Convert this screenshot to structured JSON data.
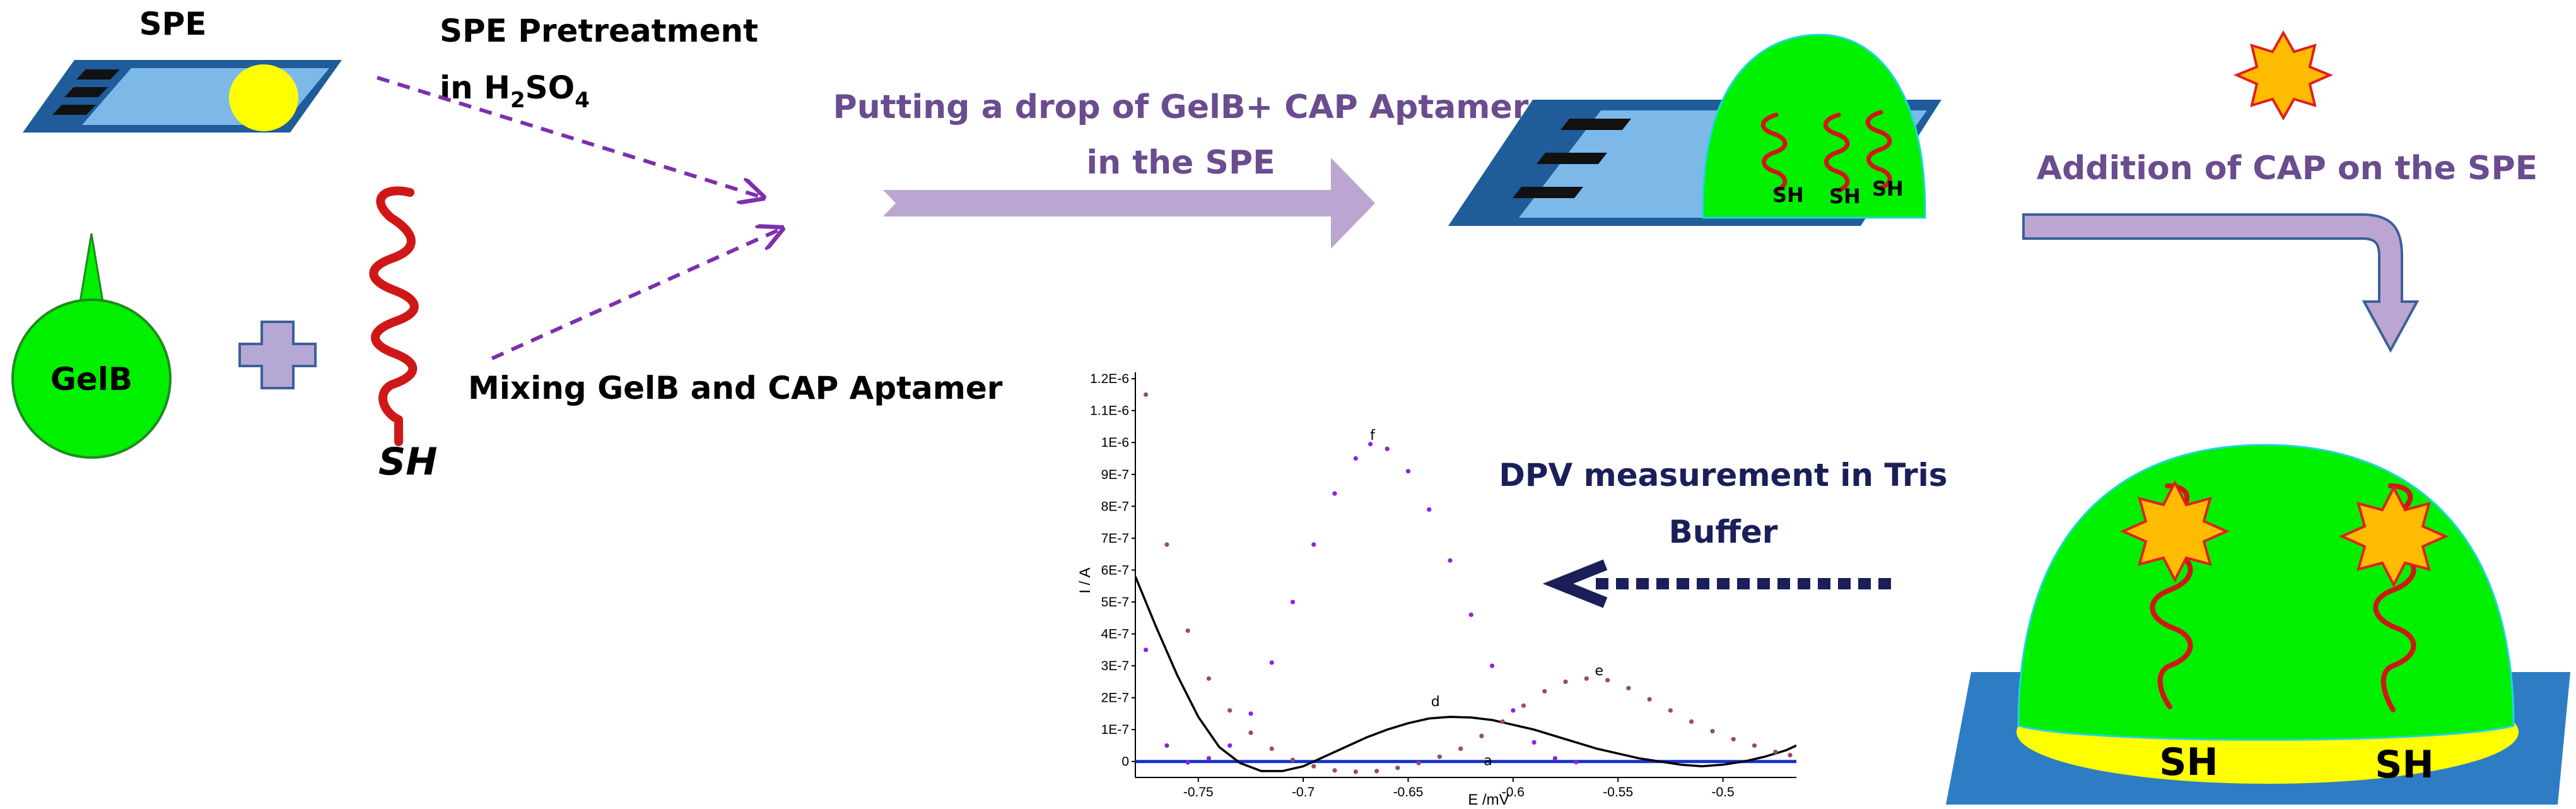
{
  "labels": {
    "spe": "SPE",
    "pretreat_line1": "SPE Pretreatment",
    "pretreat_line2": {
      "pre": "in H",
      "sub1": "2",
      "mid": "SO",
      "sub2": "4"
    },
    "gelb": "GelB",
    "sh": "SH",
    "mixing": "Mixing GelB and CAP Aptamer",
    "drop_line1": "Putting a drop of GelB+ CAP Aptamer",
    "drop_line2": "in the SPE",
    "addition": "Addition of CAP on the SPE",
    "dpv_line1": "DPV measurement in Tris",
    "dpv_line2": "Buffer"
  },
  "colors": {
    "electrode_fill": "#7db9e8",
    "electrode_border": "#1f5c99",
    "substrate": "#2e7dc4",
    "gel": "#00f000",
    "gel_border": "#22d5e0",
    "aptamer": "#d01717",
    "yellow": "#ffff00",
    "star": "#ffbb00",
    "star_border": "#e02020",
    "dashed_arrow": "#7d2fb0",
    "big_arrow": "#bba6d1",
    "text_purple": "#6a4c8f",
    "dpv_arrow": "#1a1f5a",
    "cross_fill": "#b6a8d4",
    "cross_border": "#3d5f9a"
  },
  "chart_data": {
    "type": "scatter",
    "xlabel": "E /mV",
    "ylabel": "I / A",
    "xlim": [
      -0.78,
      -0.465
    ],
    "ylim": [
      -5e-08,
      1.22e-06
    ],
    "x_ticks": [
      {
        "v": -0.75,
        "label": "-0.75"
      },
      {
        "v": -0.7,
        "label": "-0.7"
      },
      {
        "v": -0.65,
        "label": "-0.65"
      },
      {
        "v": -0.6,
        "label": "-0.6"
      },
      {
        "v": -0.55,
        "label": "-0.55"
      },
      {
        "v": -0.5,
        "label": "-0.5"
      }
    ],
    "y_ticks": [
      {
        "v": 0,
        "label": "0"
      },
      {
        "v": 1e-07,
        "label": "1E-7"
      },
      {
        "v": 2e-07,
        "label": "2E-7"
      },
      {
        "v": 3e-07,
        "label": "3E-7"
      },
      {
        "v": 4e-07,
        "label": "4E-7"
      },
      {
        "v": 5e-07,
        "label": "5E-7"
      },
      {
        "v": 6e-07,
        "label": "6E-7"
      },
      {
        "v": 7e-07,
        "label": "7E-7"
      },
      {
        "v": 8e-07,
        "label": "8E-7"
      },
      {
        "v": 9e-07,
        "label": "9E-7"
      },
      {
        "v": 1e-06,
        "label": "1E-6"
      },
      {
        "v": 1.1e-06,
        "label": "1.1E-6"
      },
      {
        "v": 1.2e-06,
        "label": "1.2E-6"
      }
    ],
    "series": [
      {
        "name": "a",
        "style": "line",
        "color": "#1630c8",
        "x": [
          -0.78,
          -0.74,
          -0.7,
          -0.66,
          -0.62,
          -0.58,
          -0.54,
          -0.5,
          -0.465
        ],
        "y": [
          0,
          0,
          0,
          0,
          0,
          0,
          0,
          0,
          0
        ],
        "label_at": [
          -0.612,
          0
        ]
      },
      {
        "name": "d",
        "style": "line",
        "color": "#000000",
        "x": [
          -0.78,
          -0.77,
          -0.76,
          -0.75,
          -0.74,
          -0.73,
          -0.72,
          -0.71,
          -0.7,
          -0.69,
          -0.68,
          -0.67,
          -0.66,
          -0.65,
          -0.64,
          -0.63,
          -0.62,
          -0.61,
          -0.6,
          -0.59,
          -0.58,
          -0.57,
          -0.56,
          -0.55,
          -0.54,
          -0.53,
          -0.52,
          -0.51,
          -0.5,
          -0.49,
          -0.48,
          -0.47,
          -0.465
        ],
        "y": [
          5.8e-07,
          4.2e-07,
          2.7e-07,
          1.4e-07,
          4.5e-08,
          -5e-09,
          -3e-08,
          -3e-08,
          -1.5e-08,
          1.5e-08,
          4.5e-08,
          7.5e-08,
          1e-07,
          1.2e-07,
          1.35e-07,
          1.4e-07,
          1.38e-07,
          1.3e-07,
          1.15e-07,
          1e-07,
          8e-08,
          6e-08,
          4e-08,
          2.5e-08,
          1e-08,
          0,
          -1e-08,
          -1.5e-08,
          -1e-08,
          0,
          1.5e-08,
          3.5e-08,
          5e-08
        ],
        "label_at": [
          -0.637,
          1.85e-07
        ]
      },
      {
        "name": "e",
        "style": "dots",
        "color": "#9a4a6a",
        "x": [
          -0.775,
          -0.765,
          -0.755,
          -0.745,
          -0.735,
          -0.725,
          -0.715,
          -0.705,
          -0.695,
          -0.685,
          -0.675,
          -0.665,
          -0.655,
          -0.645,
          -0.635,
          -0.625,
          -0.615,
          -0.605,
          -0.595,
          -0.585,
          -0.575,
          -0.565,
          -0.555,
          -0.545,
          -0.535,
          -0.525,
          -0.515,
          -0.505,
          -0.495,
          -0.485,
          -0.475,
          -0.468
        ],
        "y": [
          1.15e-06,
          6.8e-07,
          4.1e-07,
          2.6e-07,
          1.6e-07,
          9e-08,
          4e-08,
          5e-09,
          -1.5e-08,
          -2.8e-08,
          -3.2e-08,
          -3e-08,
          -2e-08,
          -5e-09,
          1.5e-08,
          4e-08,
          8e-08,
          1.25e-07,
          1.75e-07,
          2.2e-07,
          2.5e-07,
          2.6e-07,
          2.55e-07,
          2.3e-07,
          1.95e-07,
          1.6e-07,
          1.25e-07,
          9.5e-08,
          7e-08,
          5e-08,
          3e-08,
          2e-08
        ],
        "label_at": [
          -0.559,
          2.82e-07
        ]
      },
      {
        "name": "f",
        "style": "dots",
        "color": "#9020e0",
        "x": [
          -0.775,
          -0.765,
          -0.755,
          -0.745,
          -0.735,
          -0.725,
          -0.715,
          -0.705,
          -0.695,
          -0.685,
          -0.675,
          -0.668,
          -0.66,
          -0.65,
          -0.64,
          -0.63,
          -0.62,
          -0.61,
          -0.6,
          -0.59,
          -0.58,
          -0.57
        ],
        "y": [
          3.5e-07,
          5e-08,
          -3e-09,
          1e-08,
          5e-08,
          1.5e-07,
          3.1e-07,
          5e-07,
          6.8e-07,
          8.4e-07,
          9.5e-07,
          9.95e-07,
          9.8e-07,
          9.1e-07,
          7.9e-07,
          6.3e-07,
          4.6e-07,
          3e-07,
          1.6e-07,
          6e-08,
          1e-08,
          -2e-09
        ],
        "label_at": [
          -0.667,
          1.02e-06
        ]
      }
    ]
  }
}
